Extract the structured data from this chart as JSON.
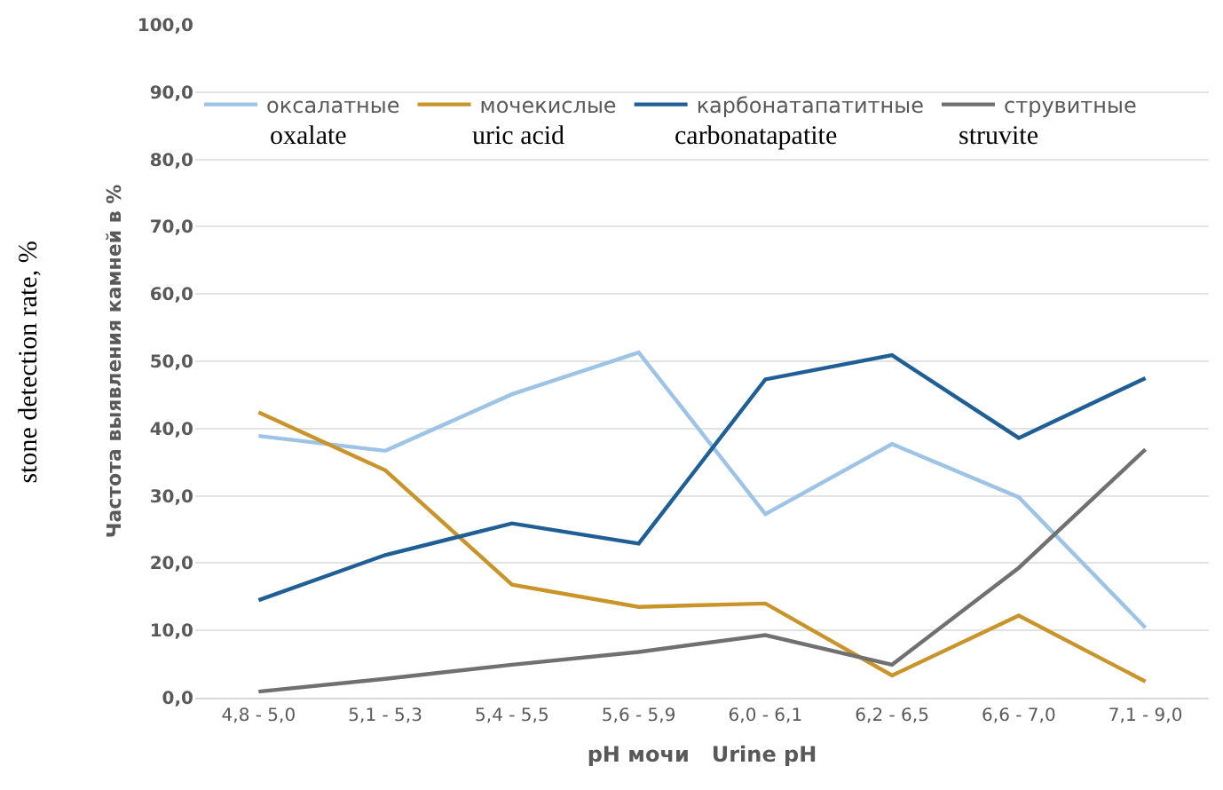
{
  "chart_data": {
    "type": "line",
    "xlabel": "pH мочи   Urine pH",
    "ylabel": "Частота выявления камней в %",
    "categories": [
      "4,8 - 5,0",
      "5,1 - 5,3",
      "5,4 - 5,5",
      "5,6 - 5,9",
      "6,0 - 6,1",
      "6,2 - 6,5",
      "6,6 - 7,0",
      "7,1 - 9,0"
    ],
    "series": [
      {
        "name": "оксалатные",
        "color": "#9dc3e6",
        "values": [
          38.9,
          36.7,
          45.1,
          51.3,
          27.3,
          37.7,
          29.8,
          10.4
        ]
      },
      {
        "name": "мочекислые",
        "color": "#c9952b",
        "values": [
          42.4,
          33.8,
          16.8,
          13.5,
          14.0,
          3.3,
          12.2,
          2.4
        ]
      },
      {
        "name": "карбонатапатитные",
        "color": "#1f5f96",
        "values": [
          14.5,
          21.2,
          25.9,
          22.9,
          47.3,
          50.9,
          38.6,
          47.5
        ]
      },
      {
        "name": "струвитные",
        "color": "#707070",
        "values": [
          0.9,
          2.8,
          4.9,
          6.8,
          9.3,
          4.9,
          19.3,
          36.9
        ]
      }
    ],
    "annotations": [
      "oxalate",
      "uric acid",
      "carbonatapatite",
      "struvite",
      "stone detection rate, %"
    ],
    "ylim": [
      0,
      100
    ],
    "yticks": [
      {
        "value": 0,
        "label": "0,0"
      },
      {
        "value": 10,
        "label": "10,0"
      },
      {
        "value": 20,
        "label": "20,0"
      },
      {
        "value": 30,
        "label": "30,0"
      },
      {
        "value": 40,
        "label": "40,0"
      },
      {
        "value": 50,
        "label": "50,0"
      },
      {
        "value": 60,
        "label": "60,0"
      },
      {
        "value": 70,
        "label": "70,0"
      },
      {
        "value": 80,
        "label": "80,0"
      },
      {
        "value": 90,
        "label": "90,0"
      },
      {
        "value": 100,
        "label": "100,0"
      }
    ],
    "grid": "y",
    "legend": "top",
    "marker": "none",
    "line_style": "solid"
  }
}
